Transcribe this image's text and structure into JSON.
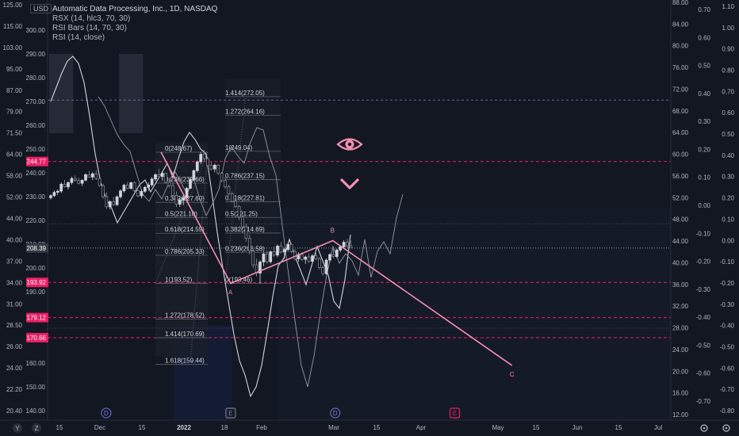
{
  "header": {
    "currency": "USD",
    "title": "Automatic Data Processing, Inc., 1D, NASDAQ",
    "indicators": [
      "RSX (14, hlc3, 70, 30)",
      "RSI Bars (14, 70, 30)",
      "RSI (14, close)"
    ]
  },
  "colors": {
    "background": "#131722",
    "up_candle": "#d1d4dc",
    "down_candle": "#8d8f96",
    "wave": "#f48fb1",
    "level": "#e91e63",
    "dashed_blue": "#5b6e9c",
    "price_marker": "#e91e63"
  },
  "chart_data": {
    "type": "line",
    "title": "Automatic Data Processing, Inc., 1D, NASDAQ",
    "main_price_axis": {
      "ticks": [
        300.0,
        290.0,
        280.0,
        270.0,
        260.0,
        250.0,
        240.0,
        230.0,
        220.0,
        210.0,
        200.0,
        190.0,
        180.0,
        170.0,
        160.0,
        150.0,
        140.0
      ],
      "range": [
        134,
        304
      ]
    },
    "left_axis_ticks": [
      "125.00",
      "115.00",
      "103.00",
      "95.00",
      "87.00",
      "79.00",
      "71.50",
      "64.00",
      "58.00",
      "52.00",
      "44.00",
      "40.00",
      "37.00",
      "34.00",
      "31.00",
      "28.50",
      "26.00",
      "24.00",
      "22.20",
      "20.40"
    ],
    "right_axis_1_ticks": [
      "88.00",
      "84.00",
      "80.00",
      "76.00",
      "72.00",
      "68.00",
      "64.00",
      "60.00",
      "56.00",
      "52.00",
      "48.00",
      "44.00",
      "40.00",
      "36.00",
      "32.00",
      "28.00",
      "24.00",
      "20.00",
      "16.00",
      "12.00"
    ],
    "right_axis_2_ticks": [
      "0.70",
      "0.60",
      "0.50",
      "0.40",
      "0.30",
      "0.20",
      "0.10",
      "0.00",
      "-0.10",
      "-0.20",
      "-0.30",
      "-0.40",
      "-0.50",
      "-0.60",
      "-0.70"
    ],
    "right_axis_3_ticks": [
      "1.10",
      "1.00",
      "0.90",
      "0.80",
      "0.70",
      "0.60",
      "0.50",
      "0.40",
      "0.30",
      "0.20",
      "0.10",
      "0.00",
      "-0.10",
      "-0.20",
      "-0.30",
      "-0.40",
      "-0.50",
      "-0.60",
      "-0.70",
      "-0.80"
    ],
    "time_axis": [
      "15",
      "Dec",
      "15",
      "2022",
      "18",
      "Feb",
      "Mar",
      "15",
      "Apr",
      "May",
      "15",
      "Jun",
      "15",
      "Jul"
    ],
    "time_axis_bold": [
      "2022"
    ],
    "price_labels": [
      {
        "text": "244.77",
        "value": 244.77
      },
      {
        "text": "208.39",
        "value": 208.39,
        "current": true
      },
      {
        "text": "193.92",
        "value": 193.92
      },
      {
        "text": "179.12",
        "value": 179.12
      },
      {
        "text": "170.66",
        "value": 170.66
      }
    ],
    "horizontal_levels": [
      {
        "value": 270.6,
        "style": "dashed-blue"
      },
      {
        "value": 244.77,
        "style": "dashed-pink"
      },
      {
        "value": 218.5,
        "style": "dotted-grey"
      },
      {
        "value": 208.39,
        "style": "dotted-white"
      },
      {
        "value": 193.92,
        "style": "dashed-pink"
      },
      {
        "value": 179.12,
        "style": "dashed-pink"
      },
      {
        "value": 174.7,
        "style": "dotted-grey"
      },
      {
        "value": 170.66,
        "style": "dashed-pink"
      }
    ],
    "fib_levels_a": [
      {
        "label": "0(248.67)",
        "value": 248.67
      },
      {
        "label": "0.236(235.66)",
        "value": 235.66
      },
      {
        "label": "0.382(227.60)",
        "value": 227.6
      },
      {
        "label": "0.5(221.10)",
        "value": 221.1
      },
      {
        "label": "0.618(214.59)",
        "value": 214.59
      },
      {
        "label": "0.786(205.33)",
        "value": 205.33
      },
      {
        "label": "1(193.52)",
        "value": 193.52
      },
      {
        "label": "1.272(178.52)",
        "value": 178.52
      },
      {
        "label": "1.414(170.69)",
        "value": 170.69
      },
      {
        "label": "1.618(159.44)",
        "value": 159.44
      }
    ],
    "fib_levels_b": [
      {
        "label": "1.414(272.05)",
        "value": 272.05
      },
      {
        "label": "1.272(264.16)",
        "value": 264.16
      },
      {
        "label": "1(249.04)",
        "value": 249.04
      },
      {
        "label": "0.786(237.15)",
        "value": 237.15
      },
      {
        "label": "0.618(227.81)",
        "value": 227.81
      },
      {
        "label": "0.5(221.25)",
        "value": 221.25
      },
      {
        "label": "0.382(214.69)",
        "value": 214.69
      },
      {
        "label": "0.236(206.58)",
        "value": 206.58
      },
      {
        "label": "0(193.46)",
        "value": 193.46
      }
    ],
    "wave_points": [
      {
        "label": "",
        "date": "2021-12-30",
        "value": 248.7
      },
      {
        "label": "A",
        "date": "2022-01-27",
        "value": 193.5
      },
      {
        "label": "B",
        "date": "2022-03-09",
        "value": 211.5
      },
      {
        "label": "C",
        "date": "2022-05-20",
        "value": 159.0
      }
    ],
    "candles": [
      [
        229.5,
        231.0,
        228.8,
        230.4
      ],
      [
        230.4,
        232.6,
        229.8,
        231.8
      ],
      [
        231.8,
        233.0,
        230.6,
        232.3
      ],
      [
        232.3,
        236.0,
        231.5,
        235.2
      ],
      [
        235.2,
        237.0,
        233.8,
        234.1
      ],
      [
        234.1,
        236.4,
        233.0,
        235.9
      ],
      [
        235.9,
        238.4,
        235.0,
        237.6
      ],
      [
        237.6,
        239.0,
        236.2,
        236.8
      ],
      [
        236.8,
        238.0,
        235.1,
        235.6
      ],
      [
        235.6,
        237.3,
        234.4,
        236.9
      ],
      [
        236.9,
        239.8,
        236.4,
        239.2
      ],
      [
        239.2,
        240.8,
        237.8,
        238.2
      ],
      [
        238.2,
        240.4,
        236.9,
        239.6
      ],
      [
        239.6,
        241.2,
        237.0,
        237.6
      ],
      [
        237.6,
        238.1,
        234.2,
        234.6
      ],
      [
        234.6,
        235.4,
        229.0,
        230.0
      ],
      [
        230.0,
        231.8,
        224.8,
        225.7
      ],
      [
        225.7,
        228.5,
        224.6,
        227.9
      ],
      [
        227.9,
        229.8,
        226.0,
        226.6
      ],
      [
        226.6,
        230.5,
        226.0,
        229.9
      ],
      [
        229.9,
        233.0,
        229.1,
        232.4
      ],
      [
        232.4,
        235.4,
        231.6,
        234.8
      ],
      [
        234.8,
        236.1,
        233.0,
        233.4
      ],
      [
        233.4,
        236.2,
        233.1,
        235.9
      ],
      [
        235.9,
        236.4,
        231.9,
        232.5
      ],
      [
        232.5,
        233.1,
        229.7,
        230.3
      ],
      [
        230.3,
        232.9,
        229.2,
        232.2
      ],
      [
        232.2,
        234.5,
        231.5,
        233.9
      ],
      [
        233.9,
        235.9,
        232.4,
        234.9
      ],
      [
        234.9,
        238.2,
        234.1,
        237.4
      ],
      [
        237.4,
        239.8,
        236.5,
        239.2
      ],
      [
        239.2,
        241.6,
        237.8,
        238.4
      ],
      [
        238.4,
        240.4,
        236.6,
        239.8
      ],
      [
        239.8,
        239.9,
        235.4,
        236.0
      ],
      [
        236.0,
        237.9,
        233.8,
        234.6
      ],
      [
        234.6,
        235.9,
        229.3,
        230.5
      ],
      [
        230.5,
        232.2,
        225.6,
        226.8
      ],
      [
        226.8,
        229.7,
        225.7,
        228.6
      ],
      [
        228.6,
        230.8,
        226.4,
        229.5
      ],
      [
        229.5,
        234.1,
        229.0,
        233.5
      ],
      [
        233.5,
        237.8,
        233.0,
        237.1
      ],
      [
        237.1,
        241.4,
        236.6,
        240.9
      ],
      [
        240.9,
        245.2,
        240.1,
        244.6
      ],
      [
        244.6,
        248.7,
        243.6,
        247.8
      ],
      [
        247.8,
        249.6,
        245.0,
        245.9
      ],
      [
        245.9,
        246.7,
        242.2,
        243.1
      ],
      [
        243.1,
        244.8,
        240.9,
        241.6
      ],
      [
        241.6,
        243.9,
        240.2,
        243.2
      ],
      [
        243.2,
        243.6,
        239.1,
        239.8
      ],
      [
        239.8,
        240.3,
        236.0,
        236.7
      ],
      [
        236.7,
        238.2,
        233.3,
        234.1
      ],
      [
        234.1,
        235.0,
        230.4,
        231.2
      ],
      [
        231.2,
        232.1,
        227.5,
        228.0
      ],
      [
        228.0,
        229.6,
        225.1,
        225.9
      ],
      [
        225.9,
        226.5,
        220.1,
        221.4
      ],
      [
        221.4,
        223.0,
        216.1,
        217.3
      ],
      [
        217.3,
        218.6,
        211.0,
        212.4
      ],
      [
        212.4,
        214.0,
        205.7,
        207.1
      ],
      [
        207.1,
        208.2,
        200.0,
        201.3
      ],
      [
        201.3,
        203.9,
        196.4,
        197.8
      ],
      [
        197.8,
        203.2,
        193.5,
        202.5
      ],
      [
        202.5,
        206.5,
        200.8,
        205.9
      ],
      [
        205.9,
        207.3,
        201.7,
        202.6
      ],
      [
        202.6,
        207.4,
        201.9,
        206.8
      ],
      [
        206.8,
        209.0,
        204.7,
        205.4
      ],
      [
        205.4,
        209.9,
        204.6,
        209.2
      ],
      [
        209.2,
        210.9,
        206.1,
        206.7
      ],
      [
        206.7,
        208.4,
        204.0,
        207.8
      ],
      [
        207.8,
        210.6,
        206.8,
        209.9
      ],
      [
        209.9,
        210.3,
        206.2,
        206.9
      ],
      [
        206.9,
        207.9,
        203.1,
        203.8
      ],
      [
        203.8,
        206.6,
        202.5,
        205.7
      ],
      [
        205.7,
        206.5,
        202.9,
        203.6
      ],
      [
        203.6,
        205.2,
        201.7,
        204.6
      ],
      [
        204.6,
        206.0,
        202.1,
        202.8
      ],
      [
        202.8,
        205.8,
        202.3,
        205.1
      ],
      [
        205.1,
        207.2,
        203.2,
        203.9
      ],
      [
        203.9,
        204.6,
        199.3,
        200.1
      ],
      [
        200.1,
        201.0,
        196.8,
        197.6
      ],
      [
        197.6,
        203.9,
        197.1,
        203.3
      ],
      [
        203.3,
        206.2,
        202.4,
        205.6
      ],
      [
        205.6,
        208.0,
        204.1,
        204.8
      ],
      [
        204.8,
        208.2,
        204.2,
        207.5
      ],
      [
        207.5,
        209.6,
        206.6,
        208.9
      ],
      [
        208.9,
        211.6,
        207.9,
        210.8
      ],
      [
        210.8,
        212.2,
        208.5,
        209.3
      ],
      [
        209.3,
        211.5,
        208.4,
        208.39
      ]
    ],
    "rsi_bands": [
      {
        "start": 0,
        "end": 6,
        "kind": "upper"
      },
      {
        "start": 20,
        "end": 26,
        "kind": "upper"
      },
      {
        "start": 38,
        "end": 47,
        "kind": "lower"
      }
    ],
    "rsx": [
      270,
      276,
      282,
      287,
      289,
      286,
      278,
      264,
      248,
      236,
      229,
      225,
      219,
      223,
      227,
      231,
      235,
      237,
      232,
      236,
      240,
      244,
      238,
      246,
      253,
      257,
      254,
      250,
      248,
      232,
      215,
      200,
      186,
      172,
      161,
      155,
      146,
      150,
      159,
      173,
      188,
      201,
      204,
      212,
      205,
      199,
      193,
      201,
      209,
      203,
      197,
      186,
      183,
      195,
      214
    ],
    "rsi": [
      272,
      268,
      262,
      256,
      252,
      249,
      240,
      231,
      228,
      233,
      229,
      235,
      241,
      236,
      231,
      238,
      229,
      222,
      227,
      233,
      246,
      251,
      247,
      244,
      253,
      259,
      258,
      247,
      239,
      218,
      197,
      178,
      159,
      150,
      163,
      181,
      197,
      209,
      202,
      206,
      203,
      197,
      212,
      196,
      207,
      211,
      206,
      221,
      231
    ],
    "events": [
      {
        "symbol": "D",
        "date": "2021-12-08",
        "kind": "dividend"
      },
      {
        "symbol": "E",
        "date": "2022-01-27",
        "kind": "earnings"
      },
      {
        "symbol": "D",
        "date": "2022-03-10",
        "kind": "dividend"
      },
      {
        "symbol": "E",
        "date": "2022-04-27",
        "kind": "earnings"
      }
    ]
  },
  "bottom_bar": {
    "left_icons": [
      "y-axis-icon",
      "z-axis-icon"
    ],
    "right_icons": [
      "gear-icon",
      "settings-icon"
    ]
  },
  "eye_icon": "eye-icon",
  "chevron_icon": "chevron-down-icon"
}
